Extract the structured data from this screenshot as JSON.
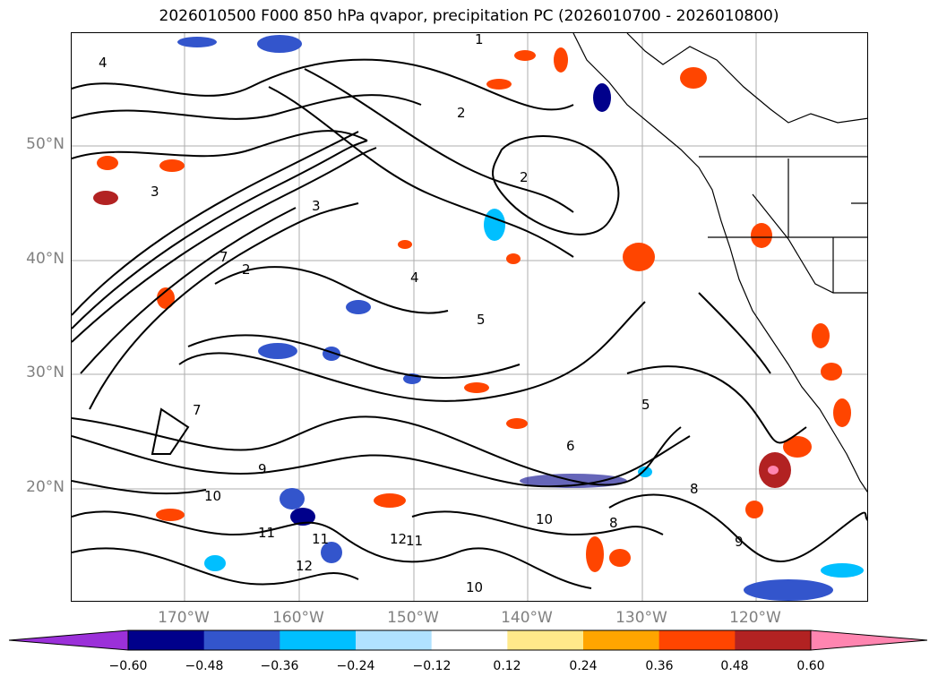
{
  "title": "2026010500 F000 850 hPa qvapor, precipitation PC (2026010700 - 2026010800)",
  "map": {
    "lat_labels": [
      "50°N",
      "40°N",
      "30°N",
      "20°N"
    ],
    "lon_labels": [
      "170°W",
      "160°W",
      "150°W",
      "140°W",
      "130°W",
      "120°W"
    ],
    "contour_labels": [
      "1",
      "2",
      "3",
      "4",
      "5",
      "6",
      "7",
      "8",
      "9",
      "10",
      "11",
      "12"
    ]
  },
  "colorbar": {
    "ticks": [
      "−0.60",
      "−0.48",
      "−0.36",
      "−0.24",
      "−0.12",
      "0.12",
      "0.24",
      "0.36",
      "0.48",
      "0.60"
    ],
    "colors": [
      "#9b30d9",
      "#00008b",
      "#3355cc",
      "#00bfff",
      "#b0e2ff",
      "#ffffff",
      "#ffe98a",
      "#ffa500",
      "#ff4500",
      "#b22222",
      "#ff85b0"
    ]
  }
}
